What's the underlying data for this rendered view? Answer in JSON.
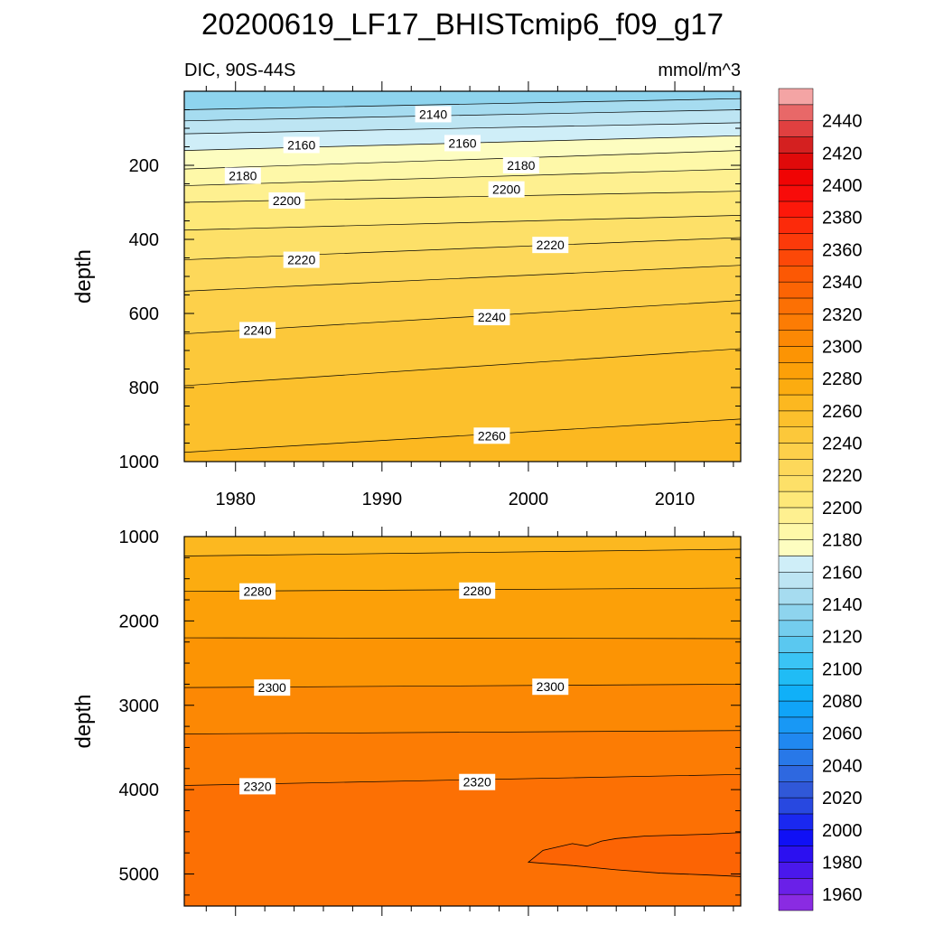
{
  "chart_data": {
    "type": "heatmap",
    "title": "20200619_LF17_BHISTcmip6_f09_g17",
    "subtitle_left": "DIC, 90S-44S",
    "subtitle_right": "mmol/m^3",
    "xlim": [
      1976.5,
      2014.5
    ],
    "x_ticks": [
      1980,
      1990,
      2000,
      2010
    ],
    "panels": [
      {
        "name": "upper",
        "ylabel": "depth",
        "ylim": [
          0,
          1000
        ],
        "y_ticks": [
          200,
          400,
          600,
          800,
          1000
        ],
        "contours": [
          {
            "level": 2140,
            "start_depth": 50,
            "end_depth": 20
          },
          {
            "level": 2150,
            "start_depth": 80,
            "end_depth": 50
          },
          {
            "level": 2160,
            "start_depth": 115,
            "end_depth": 85
          },
          {
            "level": 2170,
            "start_depth": 160,
            "end_depth": 120
          },
          {
            "level": 2180,
            "start_depth": 210,
            "end_depth": 160
          },
          {
            "level": 2190,
            "start_depth": 255,
            "end_depth": 210
          },
          {
            "level": 2200,
            "start_depth": 300,
            "end_depth": 270
          },
          {
            "level": 2210,
            "start_depth": 375,
            "end_depth": 335
          },
          {
            "level": 2220,
            "start_depth": 455,
            "end_depth": 395
          },
          {
            "level": 2230,
            "start_depth": 540,
            "end_depth": 470
          },
          {
            "level": 2240,
            "start_depth": 655,
            "end_depth": 565
          },
          {
            "level": 2250,
            "start_depth": 795,
            "end_depth": 695
          },
          {
            "level": 2260,
            "start_depth": 975,
            "end_depth": 885
          }
        ],
        "contour_labels": [
          {
            "text": "2140",
            "x": 1993.5,
            "depth": 62
          },
          {
            "text": "2160",
            "x": 1984.5,
            "depth": 145
          },
          {
            "text": "2160",
            "x": 1995.5,
            "depth": 140
          },
          {
            "text": "2180",
            "x": 1980.5,
            "depth": 228
          },
          {
            "text": "2180",
            "x": 1999.5,
            "depth": 200
          },
          {
            "text": "2200",
            "x": 1983.5,
            "depth": 295
          },
          {
            "text": "2200",
            "x": 1998.5,
            "depth": 265
          },
          {
            "text": "2220",
            "x": 1984.5,
            "depth": 455
          },
          {
            "text": "2220",
            "x": 2001.5,
            "depth": 415
          },
          {
            "text": "2240",
            "x": 1981.5,
            "depth": 645
          },
          {
            "text": "2240",
            "x": 1997.5,
            "depth": 610
          },
          {
            "text": "2260",
            "x": 1997.5,
            "depth": 930
          }
        ]
      },
      {
        "name": "lower",
        "ylabel": "depth",
        "ylim": [
          1000,
          5380
        ],
        "y_ticks": [
          1000,
          2000,
          3000,
          4000,
          5000
        ],
        "contours": [
          {
            "level": 2270,
            "start_depth": 1230,
            "end_depth": 1150
          },
          {
            "level": 2280,
            "start_depth": 1650,
            "end_depth": 1610
          },
          {
            "level": 2290,
            "start_depth": 2200,
            "end_depth": 2210
          },
          {
            "level": 2300,
            "start_depth": 2790,
            "end_depth": 2750
          },
          {
            "level": 2310,
            "start_depth": 3340,
            "end_depth": 3300
          },
          {
            "level": 2320,
            "start_depth": 3950,
            "end_depth": 3820
          }
        ],
        "contour_labels": [
          {
            "text": "2280",
            "x": 1981.5,
            "depth": 1650
          },
          {
            "text": "2280",
            "x": 1996.5,
            "depth": 1640
          },
          {
            "text": "2300",
            "x": 1982.5,
            "depth": 2790
          },
          {
            "text": "2300",
            "x": 2001.5,
            "depth": 2780
          },
          {
            "text": "2320",
            "x": 1981.5,
            "depth": 3960
          },
          {
            "text": "2320",
            "x": 1996.5,
            "depth": 3910
          }
        ],
        "closed_region": {
          "level": 2330,
          "x": [
            2000,
            2001,
            2003,
            2004,
            2005,
            2006,
            2008,
            2012,
            2014.5,
            2014.5,
            2012,
            2009,
            2006,
            2003,
            2000
          ],
          "depth": [
            4860,
            4720,
            4640,
            4670,
            4610,
            4580,
            4550,
            4530,
            4510,
            5030,
            5010,
            4990,
            4950,
            4900,
            4860
          ]
        }
      }
    ],
    "colorbar": {
      "levels": [
        1950,
        1960,
        1970,
        1980,
        1990,
        2000,
        2010,
        2020,
        2030,
        2040,
        2050,
        2060,
        2070,
        2080,
        2090,
        2100,
        2110,
        2120,
        2130,
        2140,
        2150,
        2160,
        2170,
        2180,
        2190,
        2200,
        2210,
        2220,
        2230,
        2240,
        2250,
        2260,
        2270,
        2280,
        2290,
        2300,
        2310,
        2320,
        2330,
        2340,
        2350,
        2360,
        2370,
        2380,
        2390,
        2400,
        2410,
        2420,
        2430,
        2440,
        2450,
        2460
      ],
      "colors": [
        "#8a2be2",
        "#6a20e8",
        "#4a18ec",
        "#2c10f0",
        "#1010f5",
        "#1a28f0",
        "#2848e0",
        "#3058d8",
        "#2e68e0",
        "#2878e8",
        "#2088f0",
        "#1898f5",
        "#10a4f8",
        "#10b0f8",
        "#20bcf5",
        "#3ac4f5",
        "#5ac8f0",
        "#74cdee",
        "#8ed4ee",
        "#a6dcf0",
        "#bde5f3",
        "#cfeef8",
        "#fdfdc0",
        "#fef8a8",
        "#fef090",
        "#fee878",
        "#fde068",
        "#fdd85a",
        "#fdd04a",
        "#fcc83a",
        "#fcc02c",
        "#fcb820",
        "#fcac10",
        "#fca008",
        "#fc9404",
        "#fc8804",
        "#fc7c04",
        "#fc7004",
        "#fc6404",
        "#fc5804",
        "#fc4808",
        "#fc3a0a",
        "#fc2a0a",
        "#fc180a",
        "#f80c0a",
        "#f00404",
        "#e00a0a",
        "#d42020",
        "#e04040",
        "#e86868",
        "#f4a4a4"
      ],
      "tick_labels": [
        "1960",
        "1980",
        "2000",
        "2020",
        "2040",
        "2060",
        "2080",
        "2100",
        "2120",
        "2140",
        "2160",
        "2180",
        "2200",
        "2220",
        "2240",
        "2260",
        "2280",
        "2300",
        "2320",
        "2340",
        "2360",
        "2380",
        "2400",
        "2420",
        "2440"
      ]
    }
  }
}
